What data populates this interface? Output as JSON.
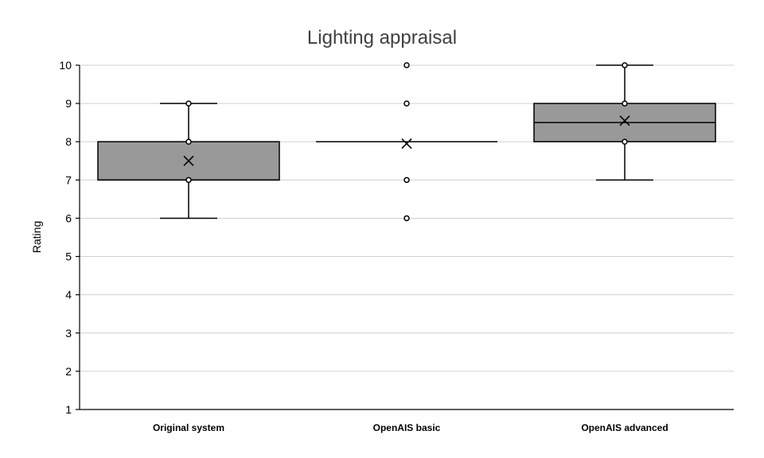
{
  "chart_data": {
    "type": "boxplot",
    "title": "Lighting appraisal",
    "xlabel": "",
    "ylabel": "Rating",
    "ylim": [
      1,
      10
    ],
    "yticks": [
      1,
      2,
      3,
      4,
      5,
      6,
      7,
      8,
      9,
      10
    ],
    "grid": true,
    "categories": [
      "Original system",
      "OpenAIS basic",
      "OpenAIS advanced"
    ],
    "boxes": [
      {
        "category": "Original system",
        "whisker_low": 6,
        "q1": 7,
        "median": 7,
        "q3": 8,
        "whisker_high": 9,
        "mean": 7.5,
        "points": [
          9,
          8,
          7
        ]
      },
      {
        "category": "OpenAIS basic",
        "whisker_low": 8,
        "q1": 8,
        "median": 8,
        "q3": 8,
        "whisker_high": 8,
        "mean": 7.95,
        "points": [
          10,
          9,
          7,
          6
        ]
      },
      {
        "category": "OpenAIS advanced",
        "whisker_low": 7,
        "q1": 8,
        "median": 8.5,
        "q3": 9,
        "whisker_high": 10,
        "mean": 8.55,
        "points": [
          10,
          9,
          8
        ]
      }
    ]
  }
}
